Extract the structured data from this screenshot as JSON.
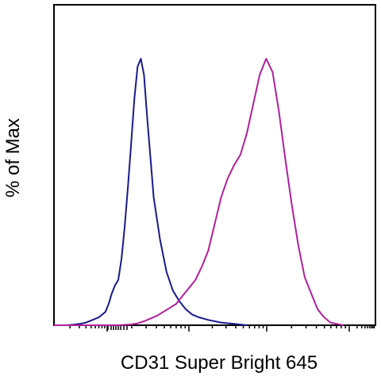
{
  "chart_data": {
    "type": "line",
    "title": "",
    "xlabel": "CD31 Super Bright 645",
    "ylabel": "% of Max",
    "x_scale": "log (biexponential)",
    "tick_labels": [],
    "ylim": [
      0,
      100
    ],
    "grid": false,
    "legend": "none",
    "series": [
      {
        "color": "#1a1a8c",
        "x": [
          0,
          2,
          4,
          6,
          8,
          10,
          12,
          14,
          16,
          17,
          18,
          19,
          20,
          21,
          22,
          23,
          24,
          25,
          26,
          27,
          28,
          29,
          30,
          31,
          33,
          35,
          37,
          39,
          41,
          43,
          45,
          48,
          52,
          56,
          60
        ],
        "values": [
          0,
          0,
          0,
          0.2,
          0.5,
          1,
          2,
          3,
          5,
          8,
          12,
          15,
          17,
          25,
          37,
          52,
          68,
          85,
          97,
          100,
          94,
          78,
          63,
          48,
          32,
          20,
          13,
          9,
          6,
          4,
          3,
          2,
          1,
          0.5,
          0
        ]
      },
      {
        "color": "#b0209c",
        "x": [
          0,
          10,
          20,
          24,
          26,
          28,
          30,
          32,
          34,
          36,
          38,
          40,
          42,
          44,
          46,
          48,
          50,
          52,
          54,
          56,
          58,
          60,
          62,
          64,
          66,
          68,
          70,
          72,
          74,
          76,
          78,
          80,
          82,
          84,
          86,
          88,
          90
        ],
        "values": [
          0,
          0,
          0,
          0.3,
          0.7,
          1.5,
          2.5,
          3.5,
          5,
          6.5,
          8,
          11,
          14,
          17,
          22,
          28,
          38,
          48,
          55,
          60,
          64,
          72,
          83,
          94,
          100,
          95,
          80,
          62,
          45,
          30,
          18,
          12,
          6,
          3,
          1,
          0.5,
          0
        ]
      }
    ]
  }
}
